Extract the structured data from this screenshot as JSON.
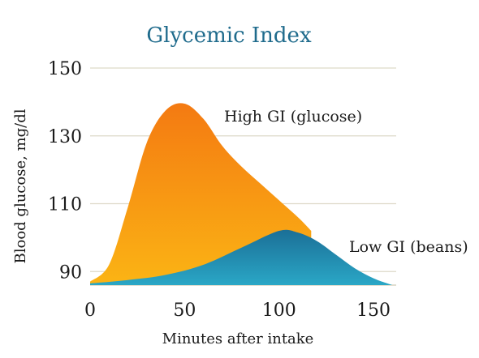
{
  "chart_data": {
    "type": "area",
    "title": "Glycemic Index",
    "xlabel": "Minutes after intake",
    "ylabel": "Blood glucose, mg/dl",
    "xlim": [
      0,
      162
    ],
    "ylim": [
      86,
      150
    ],
    "xticks": [
      0,
      50,
      100,
      150
    ],
    "yticks": [
      90,
      110,
      130,
      150
    ],
    "grid": true,
    "colors": {
      "high_top": "#f47a12",
      "high_bottom": "#fbb414",
      "low_top": "#1b6f97",
      "low_bottom": "#2aa7c6",
      "title": "#1f6b8c"
    },
    "series": [
      {
        "name": "High GI (glucose)",
        "x": [
          0,
          10,
          20,
          30,
          40,
          50,
          60,
          70,
          80,
          90,
          100,
          110,
          117
        ],
        "y": [
          87,
          92,
          109,
          128,
          137.5,
          139.5,
          135,
          127,
          121,
          116,
          111,
          106,
          102
        ]
      },
      {
        "name": "Low GI (beans)",
        "x": [
          0,
          20,
          40,
          60,
          80,
          100,
          110,
          120,
          130,
          140,
          150,
          160
        ],
        "y": [
          86.5,
          87.5,
          89,
          92,
          97,
          102,
          101.5,
          99,
          95,
          91,
          88,
          86
        ]
      }
    ]
  }
}
